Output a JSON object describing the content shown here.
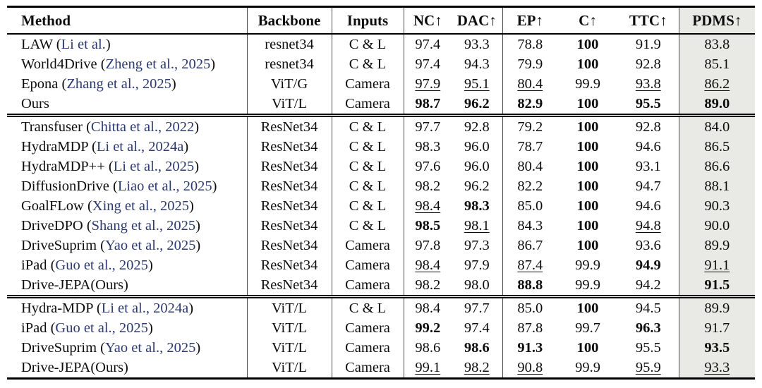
{
  "colors": {
    "citation_text": "#2d3a70",
    "pdms_column_bg": "#e9e9e6",
    "rule": "#000000"
  },
  "columns": [
    {
      "label": "Method",
      "arrow": ""
    },
    {
      "label": "Backbone",
      "arrow": ""
    },
    {
      "label": "Inputs",
      "arrow": ""
    },
    {
      "label": "NC",
      "arrow": "↑"
    },
    {
      "label": "DAC",
      "arrow": "↑"
    },
    {
      "label": "EP",
      "arrow": "↑"
    },
    {
      "label": "C",
      "arrow": "↑"
    },
    {
      "label": "TTC",
      "arrow": "↑"
    },
    {
      "label": "PDMS",
      "arrow": "↑"
    }
  ],
  "sections": [
    {
      "rows": [
        {
          "method": "LAW",
          "citation": "Li et al.",
          "backbone": "resnet34",
          "inputs": "C & L",
          "metrics": [
            {
              "v": "97.4",
              "s": ""
            },
            {
              "v": "93.3",
              "s": ""
            },
            {
              "v": "78.8",
              "s": ""
            },
            {
              "v": "100",
              "s": "b"
            },
            {
              "v": "91.9",
              "s": ""
            },
            {
              "v": "83.8",
              "s": ""
            }
          ]
        },
        {
          "method": "World4Drive",
          "citation": "Zheng et al., 2025",
          "backbone": "resnet34",
          "inputs": "C & L",
          "metrics": [
            {
              "v": "97.4",
              "s": ""
            },
            {
              "v": "94.3",
              "s": ""
            },
            {
              "v": "79.9",
              "s": ""
            },
            {
              "v": "100",
              "s": "b"
            },
            {
              "v": "92.8",
              "s": ""
            },
            {
              "v": "85.1",
              "s": ""
            }
          ]
        },
        {
          "method": "Epona",
          "citation": "Zhang et al., 2025",
          "backbone": "ViT/G",
          "inputs": "Camera",
          "metrics": [
            {
              "v": "97.9",
              "s": "u"
            },
            {
              "v": "95.1",
              "s": "u"
            },
            {
              "v": "80.4",
              "s": "u"
            },
            {
              "v": "99.9",
              "s": ""
            },
            {
              "v": "93.8",
              "s": "u"
            },
            {
              "v": "86.2",
              "s": "u"
            }
          ]
        },
        {
          "method": "Ours",
          "citation": "",
          "backbone": "ViT/L",
          "inputs": "Camera",
          "metrics": [
            {
              "v": "98.7",
              "s": "b"
            },
            {
              "v": "96.2",
              "s": "b"
            },
            {
              "v": "82.9",
              "s": "b"
            },
            {
              "v": "100",
              "s": "b"
            },
            {
              "v": "95.5",
              "s": "b"
            },
            {
              "v": "89.0",
              "s": "b"
            }
          ]
        }
      ]
    },
    {
      "rows": [
        {
          "method": "Transfuser",
          "citation": "Chitta et al., 2022",
          "backbone": "ResNet34",
          "inputs": "C & L",
          "metrics": [
            {
              "v": "97.7",
              "s": ""
            },
            {
              "v": "92.8",
              "s": ""
            },
            {
              "v": "79.2",
              "s": ""
            },
            {
              "v": "100",
              "s": "b"
            },
            {
              "v": "92.8",
              "s": ""
            },
            {
              "v": "84.0",
              "s": ""
            }
          ]
        },
        {
          "method": "HydraMDP",
          "citation": "Li et al., 2024a",
          "backbone": "ResNet34",
          "inputs": "C & L",
          "metrics": [
            {
              "v": "98.3",
              "s": ""
            },
            {
              "v": "96.0",
              "s": ""
            },
            {
              "v": "78.7",
              "s": ""
            },
            {
              "v": "100",
              "s": "b"
            },
            {
              "v": "94.6",
              "s": ""
            },
            {
              "v": "86.5",
              "s": ""
            }
          ]
        },
        {
          "method": "HydraMDP++",
          "citation": "Li et al., 2025",
          "backbone": "ResNet34",
          "inputs": "C & L",
          "metrics": [
            {
              "v": "97.6",
              "s": ""
            },
            {
              "v": "96.0",
              "s": ""
            },
            {
              "v": "80.4",
              "s": ""
            },
            {
              "v": "100",
              "s": "b"
            },
            {
              "v": "93.1",
              "s": ""
            },
            {
              "v": "86.6",
              "s": ""
            }
          ]
        },
        {
          "method": "DiffusionDrive",
          "citation": "Liao et al., 2025",
          "backbone": "ResNet34",
          "inputs": "C & L",
          "metrics": [
            {
              "v": "98.2",
              "s": ""
            },
            {
              "v": "96.2",
              "s": ""
            },
            {
              "v": "82.2",
              "s": ""
            },
            {
              "v": "100",
              "s": "b"
            },
            {
              "v": "94.7",
              "s": ""
            },
            {
              "v": "88.1",
              "s": ""
            }
          ]
        },
        {
          "method": "GoalFLow",
          "citation": "Xing et al., 2025",
          "backbone": "ResNet34",
          "inputs": "C & L",
          "metrics": [
            {
              "v": "98.4",
              "s": "u"
            },
            {
              "v": "98.3",
              "s": "b"
            },
            {
              "v": "85.0",
              "s": ""
            },
            {
              "v": "100",
              "s": "b"
            },
            {
              "v": "94.6",
              "s": ""
            },
            {
              "v": "90.3",
              "s": ""
            }
          ]
        },
        {
          "method": "DriveDPO",
          "citation": "Shang et al., 2025",
          "backbone": "ResNet34",
          "inputs": "C & L",
          "metrics": [
            {
              "v": "98.5",
              "s": "b"
            },
            {
              "v": "98.1",
              "s": "u"
            },
            {
              "v": "84.3",
              "s": ""
            },
            {
              "v": "100",
              "s": "b"
            },
            {
              "v": "94.8",
              "s": "u"
            },
            {
              "v": "90.0",
              "s": ""
            }
          ]
        },
        {
          "method": "DriveSuprim",
          "citation": "Yao et al., 2025",
          "backbone": "ResNet34",
          "inputs": "Camera",
          "metrics": [
            {
              "v": "97.8",
              "s": ""
            },
            {
              "v": "97.3",
              "s": ""
            },
            {
              "v": "86.7",
              "s": ""
            },
            {
              "v": "100",
              "s": "b"
            },
            {
              "v": "93.6",
              "s": ""
            },
            {
              "v": "89.9",
              "s": ""
            }
          ]
        },
        {
          "method": "iPad",
          "citation": "Guo et al., 2025",
          "backbone": "ResNet34",
          "inputs": "Camera",
          "metrics": [
            {
              "v": "98.4",
              "s": "u"
            },
            {
              "v": "97.9",
              "s": ""
            },
            {
              "v": "87.4",
              "s": "u"
            },
            {
              "v": "99.9",
              "s": ""
            },
            {
              "v": "94.9",
              "s": "b"
            },
            {
              "v": "91.1",
              "s": "u"
            }
          ]
        },
        {
          "method": "Drive-JEPA(Ours)",
          "citation": "",
          "backbone": "ResNet34",
          "inputs": "Camera",
          "metrics": [
            {
              "v": "98.2",
              "s": ""
            },
            {
              "v": "98.0",
              "s": ""
            },
            {
              "v": "88.8",
              "s": "b"
            },
            {
              "v": "99.9",
              "s": ""
            },
            {
              "v": "94.2",
              "s": ""
            },
            {
              "v": "91.5",
              "s": "b"
            }
          ]
        }
      ]
    },
    {
      "rows": [
        {
          "method": "Hydra-MDP",
          "citation": "Li et al., 2024a",
          "backbone": "ViT/L",
          "inputs": "C & L",
          "metrics": [
            {
              "v": "98.4",
              "s": ""
            },
            {
              "v": "97.7",
              "s": ""
            },
            {
              "v": "85.0",
              "s": ""
            },
            {
              "v": "100",
              "s": "b"
            },
            {
              "v": "94.5",
              "s": ""
            },
            {
              "v": "89.9",
              "s": ""
            }
          ]
        },
        {
          "method": "iPad",
          "citation": "Guo et al., 2025",
          "backbone": "ViT/L",
          "inputs": "Camera",
          "metrics": [
            {
              "v": "99.2",
              "s": "b"
            },
            {
              "v": "97.4",
              "s": ""
            },
            {
              "v": "87.8",
              "s": ""
            },
            {
              "v": "99.7",
              "s": ""
            },
            {
              "v": "96.3",
              "s": "b"
            },
            {
              "v": "91.7",
              "s": ""
            }
          ]
        },
        {
          "method": "DriveSuprim",
          "citation": "Yao et al., 2025",
          "backbone": "ViT/L",
          "inputs": "Camera",
          "metrics": [
            {
              "v": "98.6",
              "s": ""
            },
            {
              "v": "98.6",
              "s": "b"
            },
            {
              "v": "91.3",
              "s": "b"
            },
            {
              "v": "100",
              "s": "b"
            },
            {
              "v": "95.5",
              "s": ""
            },
            {
              "v": "93.5",
              "s": "b"
            }
          ]
        },
        {
          "method": "Drive-JEPA(Ours)",
          "citation": "",
          "backbone": "ViT/L",
          "inputs": "Camera",
          "metrics": [
            {
              "v": "99.1",
              "s": "u"
            },
            {
              "v": "98.2",
              "s": "u"
            },
            {
              "v": "90.8",
              "s": "u"
            },
            {
              "v": "99.9",
              "s": ""
            },
            {
              "v": "95.9",
              "s": "u"
            },
            {
              "v": "93.3",
              "s": "u"
            }
          ]
        }
      ]
    }
  ]
}
